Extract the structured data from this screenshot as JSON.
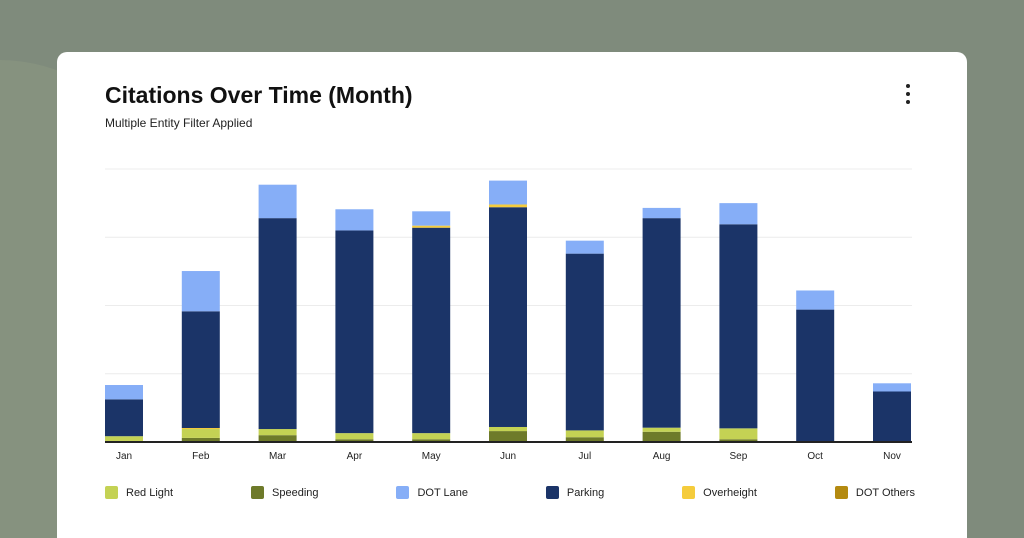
{
  "title": "Citations Over Time (Month)",
  "subtitle": "Multiple Entity Filter Applied",
  "menu_icon": "kebab-vertical-icon",
  "chart_data": {
    "type": "bar",
    "stacked": true,
    "title": "Citations Over Time (Month)",
    "categories": [
      "Jan",
      "Feb",
      "Mar",
      "Apr",
      "May",
      "Jun",
      "Jul",
      "Aug",
      "Sep",
      "Oct",
      "Nov"
    ],
    "ylim": [
      0,
      400
    ],
    "grid": true,
    "y_tick_labels_shown": false,
    "legend_placement": "bottom",
    "series": [
      {
        "name": "Speeding",
        "color": "#6e7a2a",
        "values": [
          1.5,
          6,
          10,
          4,
          4,
          16,
          7,
          15,
          4,
          0,
          0
        ]
      },
      {
        "name": "DOT Others",
        "color": "#b48a10",
        "values": [
          0,
          0,
          0,
          0,
          0,
          0,
          0,
          0,
          0,
          0,
          0
        ]
      },
      {
        "name": "Red Light",
        "color": "#c4d254",
        "values": [
          7,
          13,
          9,
          9,
          9,
          6,
          10,
          6,
          16,
          0,
          0
        ]
      },
      {
        "name": "Overheight",
        "color": "#f5cc3c",
        "values": [
          0,
          1.5,
          0,
          0,
          0,
          0,
          0,
          0,
          0,
          0,
          0
        ]
      },
      {
        "name": "Parking",
        "color": "#1b3468",
        "values": [
          54,
          171,
          309,
          297,
          301,
          322,
          259,
          307,
          299,
          194,
          74
        ]
      },
      {
        "name": "Overheight",
        "color": "#f5cc3c",
        "values": [
          0,
          0,
          0,
          0,
          3,
          4,
          0,
          0,
          0,
          0,
          0
        ]
      },
      {
        "name": "DOT Lane",
        "color": "#86aef7",
        "values": [
          21,
          59,
          49,
          31,
          21,
          35,
          19,
          15,
          31,
          28,
          12
        ]
      }
    ],
    "legend": [
      {
        "name": "Red Light",
        "color": "#c4d254"
      },
      {
        "name": "Speeding",
        "color": "#6e7a2a"
      },
      {
        "name": "DOT Lane",
        "color": "#86aef7"
      },
      {
        "name": "Parking",
        "color": "#1b3468"
      },
      {
        "name": "Overheight",
        "color": "#f5cc3c"
      },
      {
        "name": "DOT Others",
        "color": "#b48a10"
      }
    ]
  }
}
